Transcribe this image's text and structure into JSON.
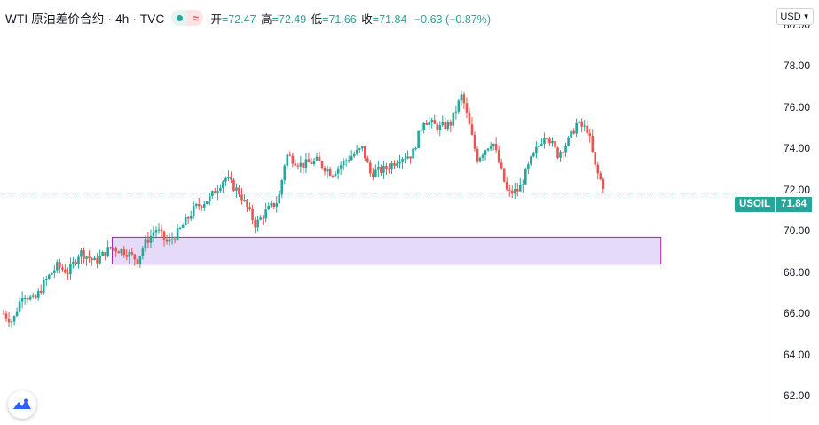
{
  "legend": {
    "symbol": "WTI 原油差价合约 · 4h · TVC",
    "status_icon": "market-open-dot",
    "delay_icon": "approx-wave-icon",
    "delay_glyph": "≈",
    "open_label": "开",
    "open_value": "=72.47",
    "high_label": "高",
    "high_value": "=72.49",
    "low_label": "低",
    "low_value": "=71.66",
    "close_label": "收",
    "close_value": "=71.84",
    "change_value": "−0.63 (−0.87%)"
  },
  "currency": "USD",
  "price_tag": {
    "symbol": "USOIL",
    "value": "71.84"
  },
  "colors": {
    "up": "#26a69a",
    "down": "#ef5350",
    "zone_fill": "#e1d5f7",
    "zone_stroke": "#9c27b0"
  },
  "chart_data": {
    "type": "candlestick",
    "title": "WTI 原油差价合约 · 4h · TVC",
    "y_ticks": [
      "62.00",
      "64.00",
      "66.00",
      "68.00",
      "70.00",
      "72.00",
      "74.00",
      "76.00",
      "78.00",
      "80.00"
    ],
    "y_tick_values": [
      62,
      64,
      66,
      68,
      70,
      72,
      74,
      76,
      78,
      80
    ],
    "ylim": [
      60.6,
      81.2
    ],
    "last_price": 71.84,
    "zone": {
      "x_start": 0.146,
      "x_end": 0.86,
      "y_low": 68.4,
      "y_high": 69.7
    },
    "path_points": [
      [
        0,
        66.0
      ],
      [
        0.012,
        65.6
      ],
      [
        0.025,
        67.0
      ],
      [
        0.04,
        66.6
      ],
      [
        0.055,
        67.6
      ],
      [
        0.07,
        68.3
      ],
      [
        0.085,
        68.0
      ],
      [
        0.1,
        69.0
      ],
      [
        0.12,
        68.5
      ],
      [
        0.14,
        69.2
      ],
      [
        0.16,
        69.0
      ],
      [
        0.175,
        68.6
      ],
      [
        0.185,
        69.4
      ],
      [
        0.2,
        70.1
      ],
      [
        0.215,
        69.4
      ],
      [
        0.23,
        70.0
      ],
      [
        0.25,
        71.1
      ],
      [
        0.27,
        71.6
      ],
      [
        0.29,
        72.6
      ],
      [
        0.31,
        71.8
      ],
      [
        0.33,
        70.3
      ],
      [
        0.345,
        71.0
      ],
      [
        0.36,
        71.5
      ],
      [
        0.37,
        73.7
      ],
      [
        0.39,
        73.2
      ],
      [
        0.41,
        73.4
      ],
      [
        0.43,
        72.8
      ],
      [
        0.45,
        73.5
      ],
      [
        0.47,
        74.0
      ],
      [
        0.48,
        72.8
      ],
      [
        0.5,
        73.0
      ],
      [
        0.52,
        73.6
      ],
      [
        0.535,
        73.7
      ],
      [
        0.55,
        75.4
      ],
      [
        0.57,
        75.0
      ],
      [
        0.585,
        75.2
      ],
      [
        0.6,
        76.6
      ],
      [
        0.62,
        73.5
      ],
      [
        0.64,
        74.4
      ],
      [
        0.66,
        71.8
      ],
      [
        0.675,
        72.0
      ],
      [
        0.69,
        73.4
      ],
      [
        0.71,
        74.8
      ],
      [
        0.725,
        73.7
      ],
      [
        0.74,
        74.4
      ],
      [
        0.75,
        75.2
      ],
      [
        0.765,
        74.9
      ],
      [
        0.775,
        73.0
      ],
      [
        0.785,
        72.2
      ]
    ]
  }
}
